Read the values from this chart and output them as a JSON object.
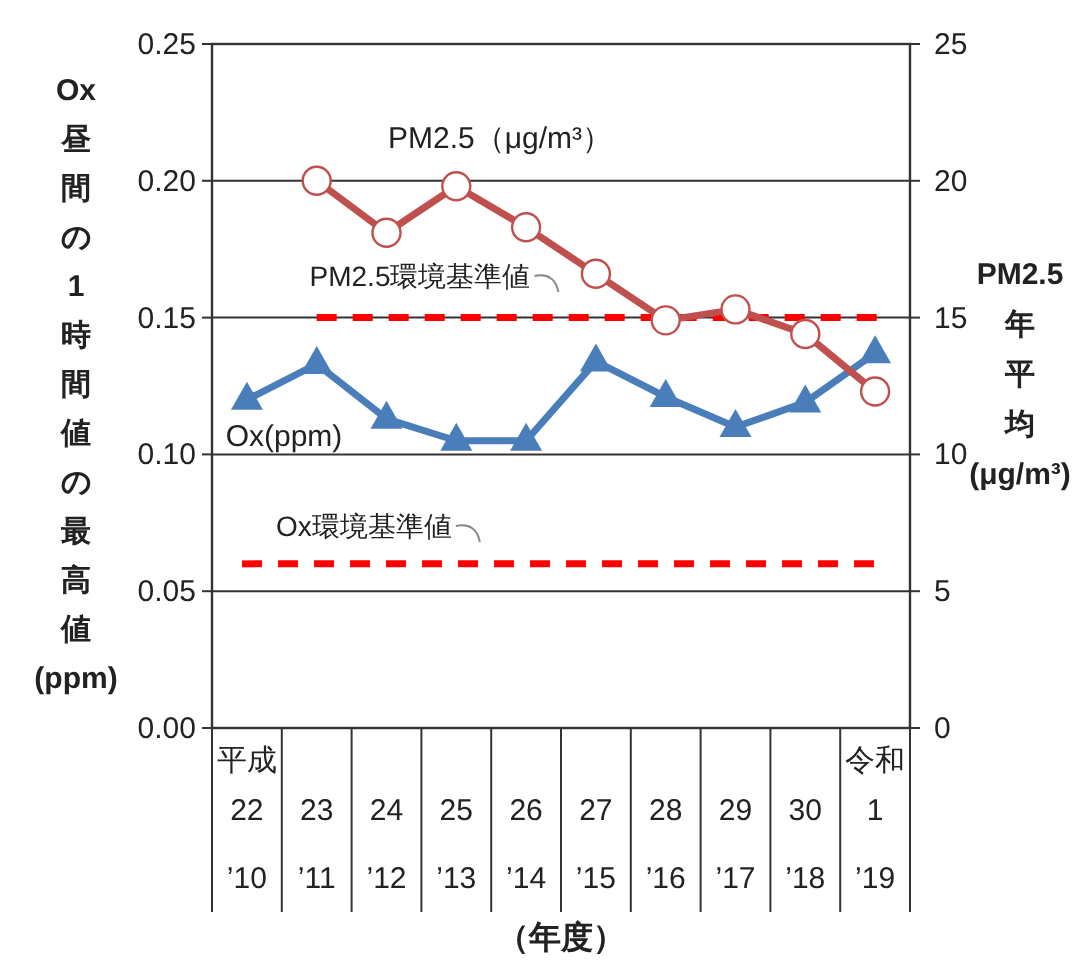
{
  "chart_data": {
    "type": "line",
    "categories": [
      "平成\n22\n’10",
      "23\n’11",
      "24\n’12",
      "25\n’13",
      "26\n’14",
      "27\n’15",
      "28\n’16",
      "29\n’17",
      "30\n’18",
      "令和\n1\n’19"
    ],
    "series": [
      {
        "name": "Ox(ppm)",
        "color": "#4a7ebb",
        "marker": "triangle",
        "values": [
          0.12,
          0.133,
          0.113,
          0.105,
          0.105,
          0.134,
          0.121,
          0.11,
          0.119,
          0.137
        ]
      },
      {
        "name": "PM2.5（μg/m³）",
        "color": "#c0504d",
        "marker": "circle",
        "axis": "y2",
        "values": [
          null,
          20.0,
          18.1,
          19.8,
          18.3,
          16.6,
          14.9,
          15.3,
          14.4,
          12.3
        ]
      }
    ],
    "ylabel": "Ox昼間の1時間値の最高値(ppm)",
    "y2label": "PM2.5年平均(μg/m³)",
    "xlabel": "（年度）",
    "ylim": [
      0,
      0.25
    ],
    "yticks": [
      {
        "value": 0,
        "label": "0.00"
      },
      {
        "value": 0.05,
        "label": "0.05"
      },
      {
        "value": 0.1,
        "label": "0.10"
      },
      {
        "value": 0.15,
        "label": "0.15"
      },
      {
        "value": 0.2,
        "label": "0.20"
      },
      {
        "value": 0.25,
        "label": "0.25"
      }
    ],
    "y2lim": [
      0,
      25
    ],
    "y2ticks": [
      0,
      5,
      10,
      15,
      20,
      25
    ],
    "ref_lines": [
      {
        "axis": "y2",
        "value": 15,
        "label": "PM2.5環境基準値",
        "color": "#ff0000",
        "line_style": "dashed"
      },
      {
        "axis": "y",
        "value": 0.06,
        "label": "Ox環境基準値",
        "color": "#ff0000",
        "line_style": "dashed"
      }
    ],
    "grid": "y",
    "legend": false,
    "line_style": "solid"
  }
}
